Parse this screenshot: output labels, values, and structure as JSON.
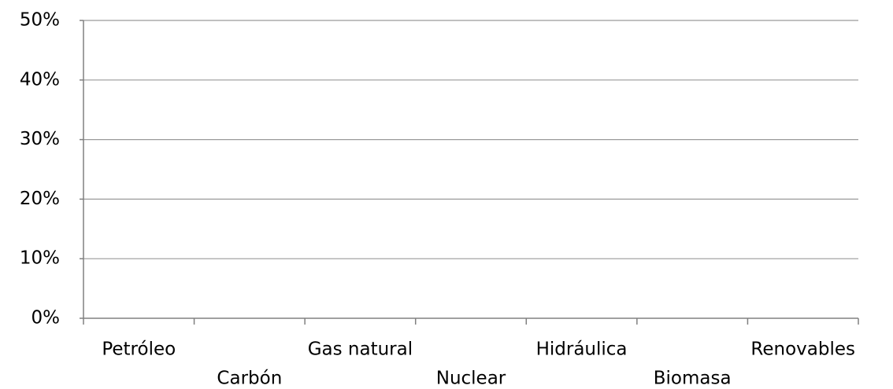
{
  "chart_data": {
    "type": "bar",
    "categories": [
      "Petróleo",
      "Carbón",
      "Gas natural",
      "Nuclear",
      "Hidráulica",
      "Biomasa",
      "Renovables"
    ],
    "ylim": [
      0,
      50
    ],
    "yticks": [
      {
        "value": 0,
        "label": "0%"
      },
      {
        "value": 10,
        "label": "10%"
      },
      {
        "value": 20,
        "label": "20%"
      },
      {
        "value": 30,
        "label": "30%"
      },
      {
        "value": 40,
        "label": "40%"
      },
      {
        "value": 50,
        "label": "50%"
      }
    ],
    "grid": true
  }
}
